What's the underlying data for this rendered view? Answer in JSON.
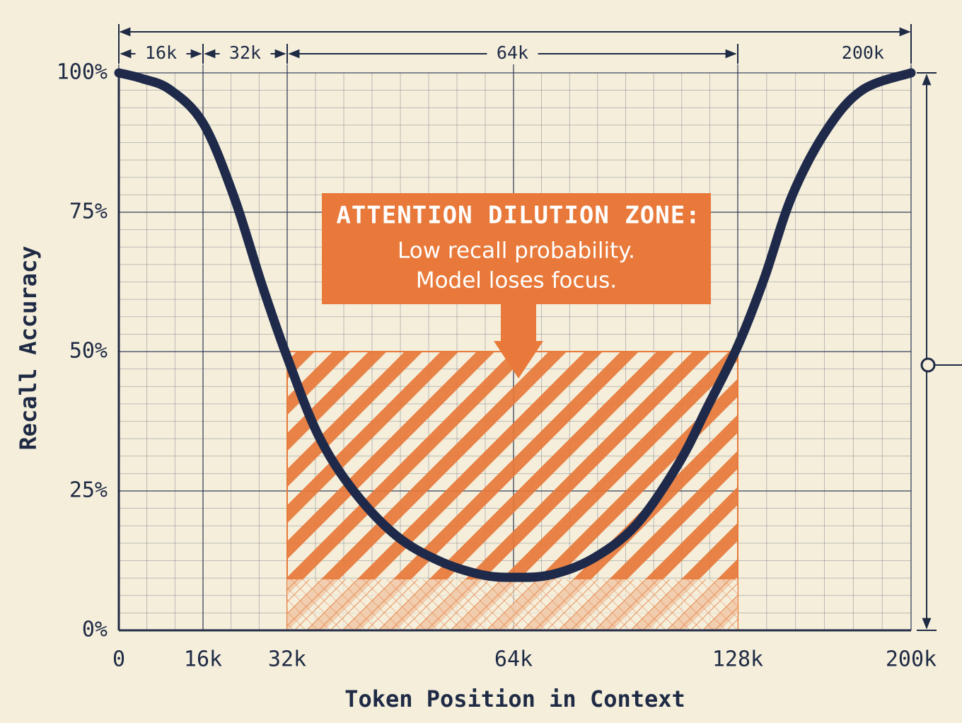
{
  "chart_data": {
    "type": "line",
    "x_label": "Token Position in Context",
    "y_label": "Recall Accuracy",
    "x": [
      0,
      4300,
      9700,
      16000,
      21800,
      27200,
      32000,
      36400,
      41400,
      47400,
      53400,
      59400,
      64000,
      74900,
      87000,
      99100,
      111200,
      119300,
      128000,
      138900,
      150600,
      165300,
      180000,
      200000
    ],
    "series": [
      {
        "color": "#1f2a4a",
        "values": [
          100,
          99,
          97,
          91,
          78,
          62,
          49,
          35,
          25,
          17,
          12.5,
          10,
          9.5,
          10,
          13,
          19,
          30,
          40,
          51,
          63,
          78,
          90,
          97,
          100
        ]
      }
    ],
    "xlim": [
      0,
      200000
    ],
    "ylim": [
      0,
      100
    ],
    "xticks": [
      {
        "value": 0,
        "label": "0"
      },
      {
        "value": 16000,
        "label": "16k"
      },
      {
        "value": 32000,
        "label": "32k"
      },
      {
        "value": 64000,
        "label": "64k"
      },
      {
        "value": 128000,
        "label": "128k"
      },
      {
        "value": 200000,
        "label": "200k"
      }
    ],
    "yticks": [
      {
        "value": 0,
        "label": "0%"
      },
      {
        "value": 25,
        "label": "25%"
      },
      {
        "value": 50,
        "label": "50%"
      },
      {
        "value": 75,
        "label": "75%"
      },
      {
        "value": 100,
        "label": "100%"
      }
    ],
    "grid": true,
    "zone": {
      "x": [
        32000,
        128000
      ],
      "y": [
        0,
        50
      ],
      "color": "#e8793a"
    },
    "callout": {
      "title": "ATTENTION DILUTION ZONE:",
      "lines": [
        "Low recall probability.",
        "Model loses focus."
      ]
    },
    "dimensions": [
      {
        "label": "16k",
        "range": [
          0,
          16000
        ]
      },
      {
        "label": "32k",
        "range": [
          16000,
          32000
        ]
      },
      {
        "label": "64k",
        "range": [
          32000,
          128000
        ]
      },
      {
        "label": "200k",
        "range": [
          0,
          200000
        ]
      }
    ]
  }
}
